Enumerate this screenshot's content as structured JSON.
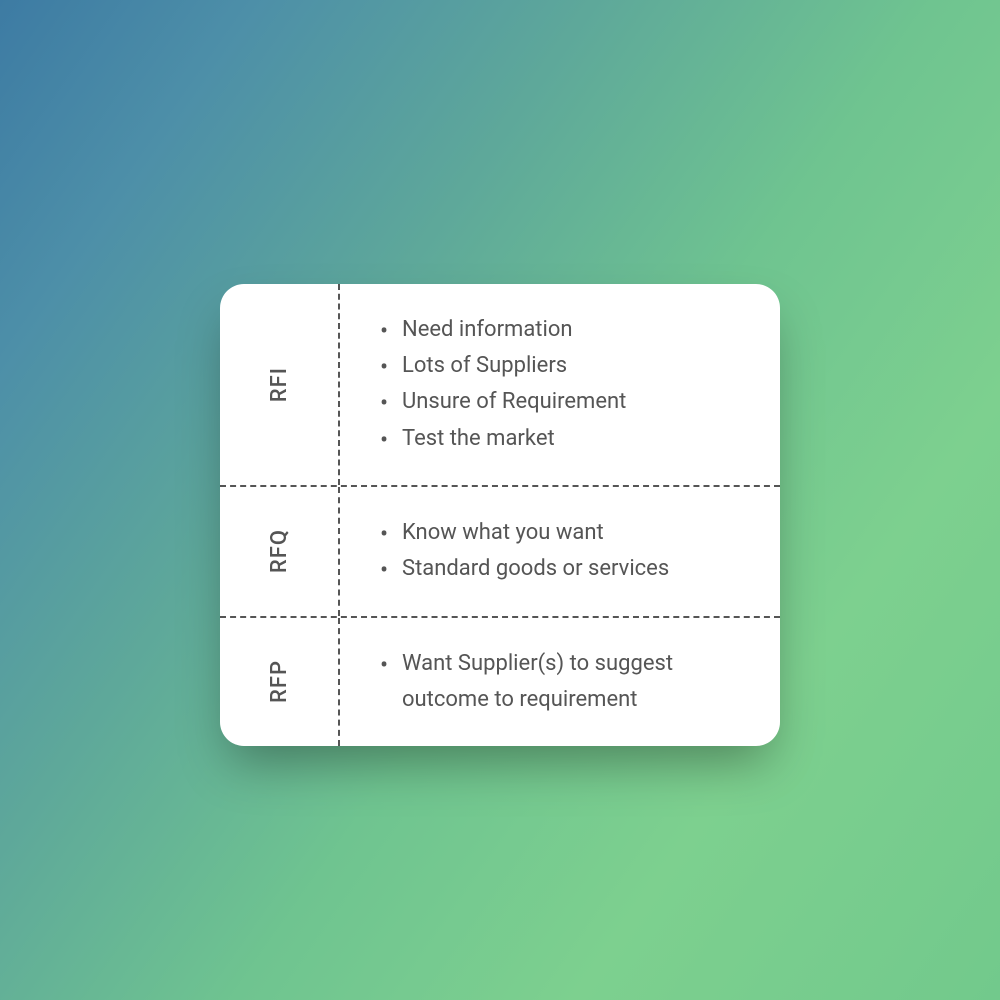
{
  "background": {
    "gradient_start": "#3d7ba3",
    "gradient_end": "#72c98c"
  },
  "card": {
    "background_color": "#ffffff",
    "border_radius": 24,
    "text_color": "#555555",
    "divider_color": "#555555",
    "divider_style": "dashed",
    "label_fontsize": 22,
    "item_fontsize": 22
  },
  "rows": [
    {
      "label": "RFI",
      "items": [
        "Need information",
        "Lots of Suppliers",
        "Unsure of Requirement",
        "Test the market"
      ]
    },
    {
      "label": "RFQ",
      "items": [
        "Know what you want",
        "Standard goods or services"
      ]
    },
    {
      "label": "RFP",
      "items": [
        "Want Supplier(s) to suggest outcome to requirement"
      ]
    }
  ]
}
